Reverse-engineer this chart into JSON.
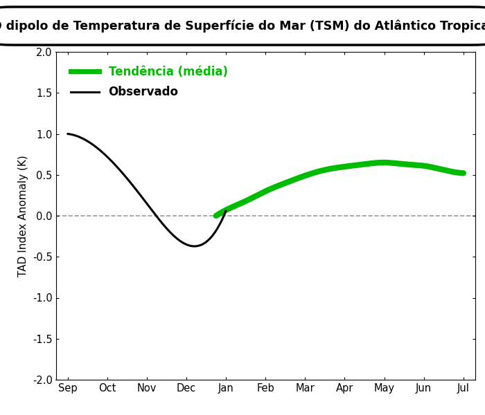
{
  "title": "O dipolo de Temperatura de Superfície do Mar (TSM) do Atlântico Tropical",
  "ylabel": "TAD Index Anomaly (K)",
  "ylim": [
    -2.0,
    2.0
  ],
  "yticks": [
    -2.0,
    -1.5,
    -1.0,
    -0.5,
    0.0,
    0.5,
    1.0,
    1.5,
    2.0
  ],
  "months": [
    "Sep",
    "Oct",
    "Nov",
    "Dec",
    "Jan",
    "Feb",
    "Mar",
    "Apr",
    "May",
    "Jun",
    "Jul"
  ],
  "observed_x": [
    0,
    1,
    2,
    3,
    4
  ],
  "observed_y": [
    1.0,
    0.72,
    0.15,
    -0.35,
    0.06
  ],
  "trend_x": [
    3.75,
    4.0,
    4.5,
    5.0,
    5.5,
    6.0,
    6.5,
    7.0,
    7.5,
    8.0,
    8.5,
    9.0,
    9.5,
    10.0
  ],
  "trend_y": [
    0.0,
    0.07,
    0.18,
    0.3,
    0.4,
    0.49,
    0.56,
    0.6,
    0.63,
    0.65,
    0.63,
    0.61,
    0.56,
    0.52
  ],
  "observed_color": "#000000",
  "trend_color": "#00bb00",
  "trend_linewidth": 6,
  "observed_linewidth": 2.2,
  "background_color": "#ffffff",
  "legend_tendencia": "Tendência (média)",
  "legend_observado": "Observado",
  "dashed_line_color": "#999999",
  "title_fontsize": 12.5,
  "tick_fontsize": 10.5,
  "ylabel_fontsize": 11
}
